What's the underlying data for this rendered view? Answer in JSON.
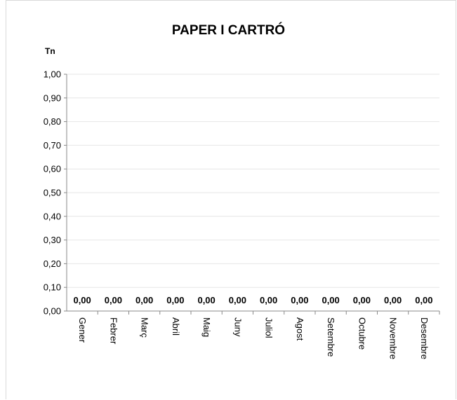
{
  "chart_data": {
    "type": "bar",
    "title": "PAPER I CARTRÓ",
    "ylabel": "Tn",
    "xlabel": "",
    "ylim": [
      0,
      1
    ],
    "yticks": [
      "0,00",
      "0,10",
      "0,20",
      "0,30",
      "0,40",
      "0,50",
      "0,60",
      "0,70",
      "0,80",
      "0,90",
      "1,00"
    ],
    "grid": true,
    "categories": [
      "Gener",
      "Febrer",
      "Març",
      "Abril",
      "Maig",
      "Juny",
      "Juliol",
      "Agost",
      "Setembre",
      "Octubre",
      "Novembre",
      "Desembre"
    ],
    "values": [
      0,
      0,
      0,
      0,
      0,
      0,
      0,
      0,
      0,
      0,
      0,
      0
    ],
    "data_labels": [
      "0,00",
      "0,00",
      "0,00",
      "0,00",
      "0,00",
      "0,00",
      "0,00",
      "0,00",
      "0,00",
      "0,00",
      "0,00",
      "0,00"
    ]
  }
}
